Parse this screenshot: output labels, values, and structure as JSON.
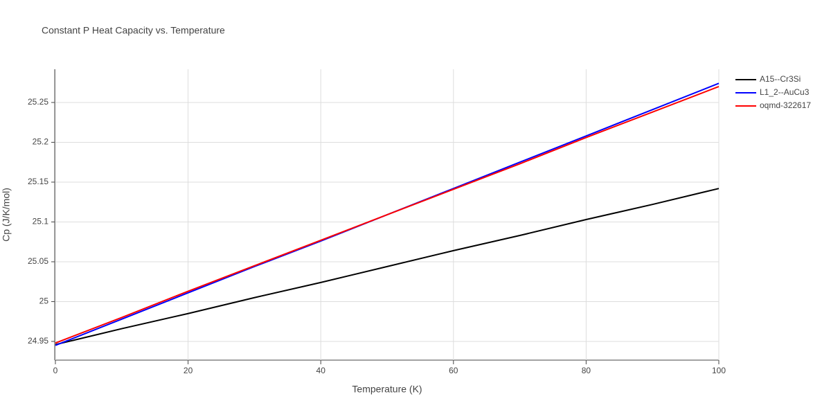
{
  "chart_data": {
    "type": "line",
    "title": "Constant P Heat Capacity vs. Temperature",
    "x_label": "Temperature (K)",
    "y_label": "Cp (J/K/mol)",
    "x": [
      0,
      10,
      20,
      30,
      40,
      50,
      60,
      70,
      80,
      90,
      100
    ],
    "series": [
      {
        "name": "A15--Cr3Si",
        "color": "#000000",
        "values": [
          24.946,
          24.966,
          24.985,
          25.005,
          25.024,
          25.044,
          25.064,
          25.083,
          25.103,
          25.122,
          25.142
        ]
      },
      {
        "name": "L1_2--AuCu3",
        "color": "#0000ff",
        "values": [
          24.945,
          24.978,
          25.011,
          25.044,
          25.076,
          25.109,
          25.142,
          25.175,
          25.208,
          25.241,
          25.274
        ]
      },
      {
        "name": "oqmd-322617",
        "color": "#ff0000",
        "values": [
          24.948,
          24.98,
          25.013,
          25.045,
          25.077,
          25.109,
          25.141,
          25.173,
          25.206,
          25.238,
          25.27
        ]
      }
    ],
    "xlim": [
      0,
      100
    ],
    "xticks": [
      0,
      20,
      40,
      60,
      80,
      100
    ],
    "ylim": [
      24.9265,
      25.2917
    ],
    "yticks": [
      24.95,
      25,
      25.05,
      25.1,
      25.15,
      25.2,
      25.25
    ],
    "grid": true,
    "legend": "right"
  }
}
